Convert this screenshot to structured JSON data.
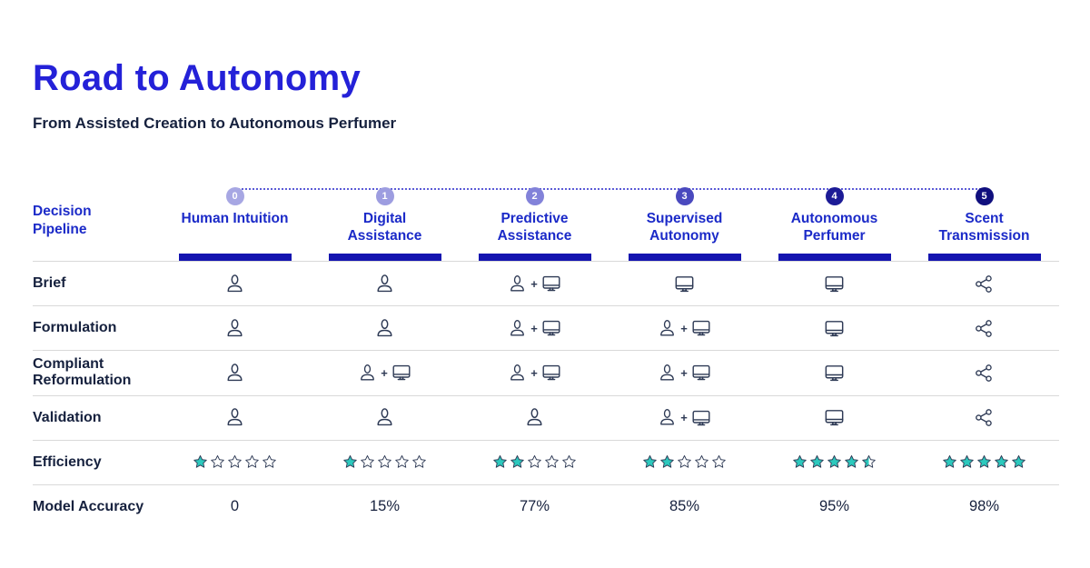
{
  "page": {
    "title": "Road to Autonomy",
    "subtitle": "From Assisted Creation to Autonomous Perfumer"
  },
  "colors": {
    "title_blue": "#2421D8",
    "header_blue": "#1B2AC8",
    "bar_blue": "#1414B0",
    "dark_navy": "#16213E",
    "icon_slate": "#2E3A55",
    "teal": "#2CC9BD",
    "divider": "#D9D9D9",
    "dot_line": "#5B5BD6",
    "stage_circle_colors": [
      "#A7A7E3",
      "#9D9DE0",
      "#8282D9",
      "#4A49BE",
      "#1C1B96",
      "#100F7E"
    ]
  },
  "pipeline": {
    "label": "Decision\nPipeline",
    "stages": [
      {
        "number": "0",
        "label": "Human Intuition"
      },
      {
        "number": "1",
        "label": "Digital Assistance"
      },
      {
        "number": "2",
        "label": "Predictive Assistance"
      },
      {
        "number": "3",
        "label": "Supervised Autonomy"
      },
      {
        "number": "4",
        "label": "Autonomous Perfumer"
      },
      {
        "number": "5",
        "label": "Scent Transmission"
      }
    ]
  },
  "table": {
    "rows": [
      {
        "label": "Brief",
        "type": "icons",
        "cells": [
          "human-icon",
          "human-icon",
          "human-plus-computer-icon",
          "computer-icon",
          "computer-icon",
          "share-icon"
        ]
      },
      {
        "label": "Formulation",
        "type": "icons",
        "cells": [
          "human-icon",
          "human-icon",
          "human-plus-computer-icon",
          "human-plus-computer-icon",
          "computer-icon",
          "share-icon"
        ]
      },
      {
        "label": "Compliant Reformulation",
        "type": "icons",
        "cells": [
          "human-icon",
          "human-plus-computer-icon",
          "human-plus-computer-icon",
          "human-plus-computer-icon",
          "computer-icon",
          "share-icon"
        ]
      },
      {
        "label": "Validation",
        "type": "icons",
        "cells": [
          "human-icon",
          "human-icon",
          "human-icon",
          "human-plus-computer-icon",
          "computer-icon",
          "share-icon"
        ]
      },
      {
        "label": "Efficiency",
        "type": "stars",
        "cells": [
          1,
          1,
          2,
          2,
          4.5,
          5
        ]
      },
      {
        "label": "Model Accuracy",
        "type": "text",
        "cells": [
          "0",
          "15%",
          "77%",
          "85%",
          "95%",
          "98%"
        ]
      }
    ]
  }
}
